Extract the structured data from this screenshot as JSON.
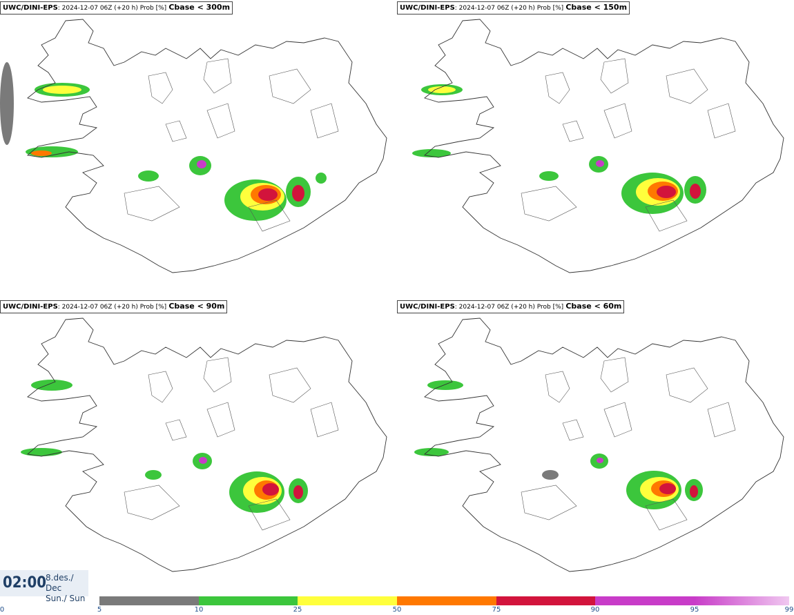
{
  "panels": [
    {
      "source": "UWC/DINI-EPS",
      "meta": ": 2024-12-07 06Z (+20 h) Prob [%]",
      "param": "Cbase < 300m"
    },
    {
      "source": "UWC/DINI-EPS",
      "meta": ": 2024-12-07 06Z (+20 h) Prob [%]",
      "param": "Cbase < 150m"
    },
    {
      "source": "UWC/DINI-EPS",
      "meta": ": 2024-12-07 06Z (+20 h) Prob [%]",
      "param": "Cbase < 90m"
    },
    {
      "source": "UWC/DINI-EPS",
      "meta": ": 2024-12-07 06Z (+20 h) Prob [%]",
      "param": "Cbase < 60m"
    }
  ],
  "valid_time": {
    "time": "02:00",
    "date_line": "8.des./ Dec",
    "day_line": "Sun./ Sun"
  },
  "legend": {
    "ticks": [
      "0",
      "5",
      "10",
      "25",
      "50",
      "75",
      "90",
      "95",
      "99"
    ],
    "colors": [
      "#ffffff",
      "#b4b4b4",
      "#7a7a7a",
      "#3cc63c",
      "#ffff3c",
      "#ff7800",
      "#d2143c",
      "#c83cc8",
      "#f0c8f0"
    ]
  }
}
